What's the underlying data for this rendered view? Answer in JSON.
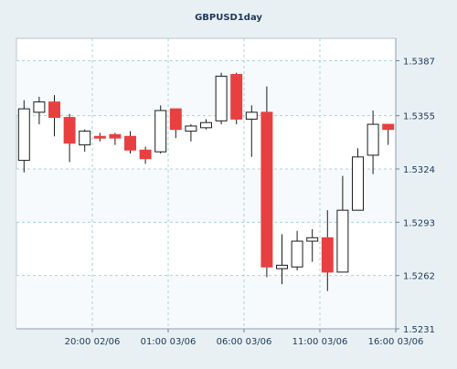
{
  "chart_data": {
    "type": "candlestick",
    "title": "GBPUSD1day",
    "ylim": [
      1.5231,
      1.54
    ],
    "y_ticks": [
      "1.5387",
      "1.5355",
      "1.5324",
      "1.5293",
      "1.5262",
      "1.5231"
    ],
    "x_ticks": [
      {
        "index": 4.5,
        "label": "20:00 02/06"
      },
      {
        "index": 9.5,
        "label": "01:00 03/06"
      },
      {
        "index": 14.5,
        "label": "06:00 03/06"
      },
      {
        "index": 19.5,
        "label": "11:00 03/06"
      },
      {
        "index": 24.5,
        "label": "16:00 03/06"
      }
    ],
    "candles": [
      {
        "open": 1.5329,
        "high": 1.5364,
        "low": 1.5322,
        "close": 1.5359
      },
      {
        "open": 1.5357,
        "high": 1.5366,
        "low": 1.535,
        "close": 1.5363
      },
      {
        "open": 1.5363,
        "high": 1.5367,
        "low": 1.5343,
        "close": 1.5354
      },
      {
        "open": 1.5354,
        "high": 1.5356,
        "low": 1.5328,
        "close": 1.5339
      },
      {
        "open": 1.5338,
        "high": 1.5347,
        "low": 1.5334,
        "close": 1.5346
      },
      {
        "open": 1.5343,
        "high": 1.5345,
        "low": 1.534,
        "close": 1.5342
      },
      {
        "open": 1.5344,
        "high": 1.5345,
        "low": 1.5338,
        "close": 1.5342
      },
      {
        "open": 1.5343,
        "high": 1.5346,
        "low": 1.5333,
        "close": 1.5335
      },
      {
        "open": 1.5335,
        "high": 1.5337,
        "low": 1.5327,
        "close": 1.533
      },
      {
        "open": 1.5334,
        "high": 1.5361,
        "low": 1.5333,
        "close": 1.5358
      },
      {
        "open": 1.5359,
        "high": 1.5359,
        "low": 1.5342,
        "close": 1.5347
      },
      {
        "open": 1.5346,
        "high": 1.535,
        "low": 1.534,
        "close": 1.5349
      },
      {
        "open": 1.5348,
        "high": 1.5353,
        "low": 1.5347,
        "close": 1.5351
      },
      {
        "open": 1.5352,
        "high": 1.538,
        "low": 1.535,
        "close": 1.5378
      },
      {
        "open": 1.5379,
        "high": 1.538,
        "low": 1.535,
        "close": 1.5353
      },
      {
        "open": 1.5353,
        "high": 1.5361,
        "low": 1.5331,
        "close": 1.5357
      },
      {
        "open": 1.5357,
        "high": 1.5372,
        "low": 1.5261,
        "close": 1.5267
      },
      {
        "open": 1.5266,
        "high": 1.5286,
        "low": 1.5257,
        "close": 1.5268
      },
      {
        "open": 1.5267,
        "high": 1.5288,
        "low": 1.5265,
        "close": 1.5282
      },
      {
        "open": 1.5282,
        "high": 1.5289,
        "low": 1.527,
        "close": 1.5284
      },
      {
        "open": 1.5284,
        "high": 1.53,
        "low": 1.5253,
        "close": 1.5264
      },
      {
        "open": 1.5264,
        "high": 1.532,
        "low": 1.5264,
        "close": 1.53
      },
      {
        "open": 1.53,
        "high": 1.5336,
        "low": 1.53,
        "close": 1.5331
      },
      {
        "open": 1.5332,
        "high": 1.5358,
        "low": 1.5321,
        "close": 1.535
      },
      {
        "open": 1.535,
        "high": 1.535,
        "low": 1.5338,
        "close": 1.5347
      }
    ],
    "colors": {
      "up_body": "#ffffff",
      "down_body": "#e84040",
      "outline": "#1a1a1a",
      "grid": "#a8d4d8",
      "plot_bg": "#ffffff",
      "shade_bg": "#f7fafc",
      "frame_bg": "#e9f0f4",
      "title": "#1a3a5a",
      "axis_text": "#1a3a5a"
    },
    "grid": true
  }
}
